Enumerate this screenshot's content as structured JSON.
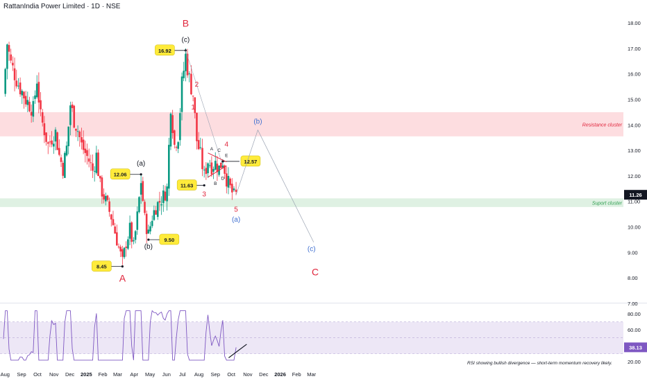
{
  "header": {
    "title": "RattanIndia Power Limited · 1D · NSE"
  },
  "colors": {
    "bull": "#089981",
    "bear": "#f23645",
    "resistance_zone": "#fddde0",
    "support_zone": "#dff1e3",
    "rsi_line": "#7e57c2",
    "rsi_band": "#ede7f6",
    "wave_red": "#e0233a",
    "wave_blue": "#3f6fd1",
    "callout_bg": "#ffeb3b"
  },
  "chart_data": [
    {
      "type": "candlestick",
      "title": "RattanIndia Power Limited · 1D · NSE",
      "ylim": [
        7.0,
        18.3
      ],
      "yticks": [
        "18.00",
        "17.00",
        "16.00",
        "15.00",
        "14.00",
        "13.00",
        "12.00",
        "11.00",
        "10.00",
        "9.00",
        "8.00",
        "7.00"
      ],
      "xticks": [
        "Aug",
        "Sep",
        "Oct",
        "Nov",
        "Dec",
        "2025",
        "Feb",
        "Mar",
        "Apr",
        "May",
        "Jun",
        "Jul",
        "Aug",
        "Sep",
        "Oct",
        "Nov",
        "Dec",
        "2026",
        "Feb",
        "Mar"
      ],
      "last_price": "11.26",
      "approx_close_path": [
        [
          "2024-07-29",
          15.2
        ],
        [
          "2024-08-05",
          17.2
        ],
        [
          "2024-08-12",
          16.4
        ],
        [
          "2024-08-19",
          16.0
        ],
        [
          "2024-08-26",
          15.6
        ],
        [
          "2024-09-02",
          15.3
        ],
        [
          "2024-09-09",
          15.0
        ],
        [
          "2024-09-16",
          14.8
        ],
        [
          "2024-09-23",
          14.6
        ],
        [
          "2024-09-30",
          15.8
        ],
        [
          "2024-10-07",
          14.3
        ],
        [
          "2024-10-14",
          13.8
        ],
        [
          "2024-10-21",
          13.2
        ],
        [
          "2024-10-28",
          13.5
        ],
        [
          "2024-11-04",
          13.7
        ],
        [
          "2024-11-11",
          12.8
        ],
        [
          "2024-11-18",
          12.3
        ],
        [
          "2024-11-25",
          13.1
        ],
        [
          "2024-12-02",
          14.8
        ],
        [
          "2024-12-09",
          14.2
        ],
        [
          "2024-12-16",
          13.8
        ],
        [
          "2024-12-23",
          13.2
        ],
        [
          "2024-12-30",
          12.9
        ],
        [
          "2025-01-06",
          12.6
        ],
        [
          "2025-01-13",
          12.2
        ],
        [
          "2025-01-20",
          12.8
        ],
        [
          "2025-01-27",
          11.6
        ],
        [
          "2025-02-03",
          11.2
        ],
        [
          "2025-02-10",
          10.8
        ],
        [
          "2025-02-17",
          10.4
        ],
        [
          "2025-02-24",
          9.8
        ],
        [
          "2025-03-03",
          9.2
        ],
        [
          "2025-03-10",
          8.6
        ],
        [
          "2025-03-17",
          9.4
        ],
        [
          "2025-03-24",
          9.9
        ],
        [
          "2025-03-31",
          9.2
        ],
        [
          "2025-04-07",
          10.4
        ],
        [
          "2025-04-14",
          11.8
        ],
        [
          "2025-04-21",
          10.3
        ],
        [
          "2025-04-28",
          9.7
        ],
        [
          "2025-05-05",
          10.4
        ],
        [
          "2025-05-12",
          10.8
        ],
        [
          "2025-05-19",
          11.0
        ],
        [
          "2025-05-26",
          11.2
        ],
        [
          "2025-06-02",
          11.5
        ],
        [
          "2025-06-09",
          14.8
        ],
        [
          "2025-06-16",
          13.2
        ],
        [
          "2025-06-23",
          13.6
        ],
        [
          "2025-06-30",
          15.6
        ],
        [
          "2025-07-07",
          16.7
        ],
        [
          "2025-07-14",
          15.8
        ],
        [
          "2025-07-21",
          15.2
        ],
        [
          "2025-07-28",
          13.4
        ],
        [
          "2025-08-04",
          12.8
        ],
        [
          "2025-08-11",
          12.0
        ],
        [
          "2025-08-18",
          12.6
        ],
        [
          "2025-08-25",
          12.4
        ],
        [
          "2025-09-01",
          12.5
        ],
        [
          "2025-09-08",
          12.3
        ],
        [
          "2025-09-15",
          12.6
        ],
        [
          "2025-09-22",
          11.9
        ],
        [
          "2025-09-29",
          11.5
        ],
        [
          "2025-10-06",
          11.2
        ],
        [
          "2025-10-10",
          11.26
        ]
      ],
      "zones": [
        {
          "label": "Resistance cluster",
          "from": 13.55,
          "to": 14.5
        },
        {
          "label": "Suport cluster",
          "from": 10.78,
          "to": 11.12
        }
      ],
      "price_callouts": [
        "16.92",
        "12.06",
        "9.50",
        "8.45",
        "11.63",
        "12.57"
      ],
      "wave_labels": [
        "B",
        "A",
        "C",
        "(c)",
        "(a)",
        "(b)",
        "(b)",
        "(a)",
        "(c)",
        "1",
        "2",
        "3",
        "4",
        "5",
        "A",
        "B",
        "C",
        "D",
        "E"
      ],
      "projection": [
        [
          "2025-10-10",
          11.26
        ],
        [
          "2025-11-20",
          13.8
        ],
        [
          "2026-03-05",
          9.4
        ]
      ]
    },
    {
      "type": "line",
      "title": "RSI",
      "ylim": [
        15,
        88
      ],
      "yticks": [
        "80.00",
        "60.00",
        "40.00",
        "20.00"
      ],
      "last_value": "38.13",
      "bands": [
        30,
        70
      ],
      "annotation": "RSI showing bullish divergence — short-term momentum recovery likely."
    }
  ]
}
